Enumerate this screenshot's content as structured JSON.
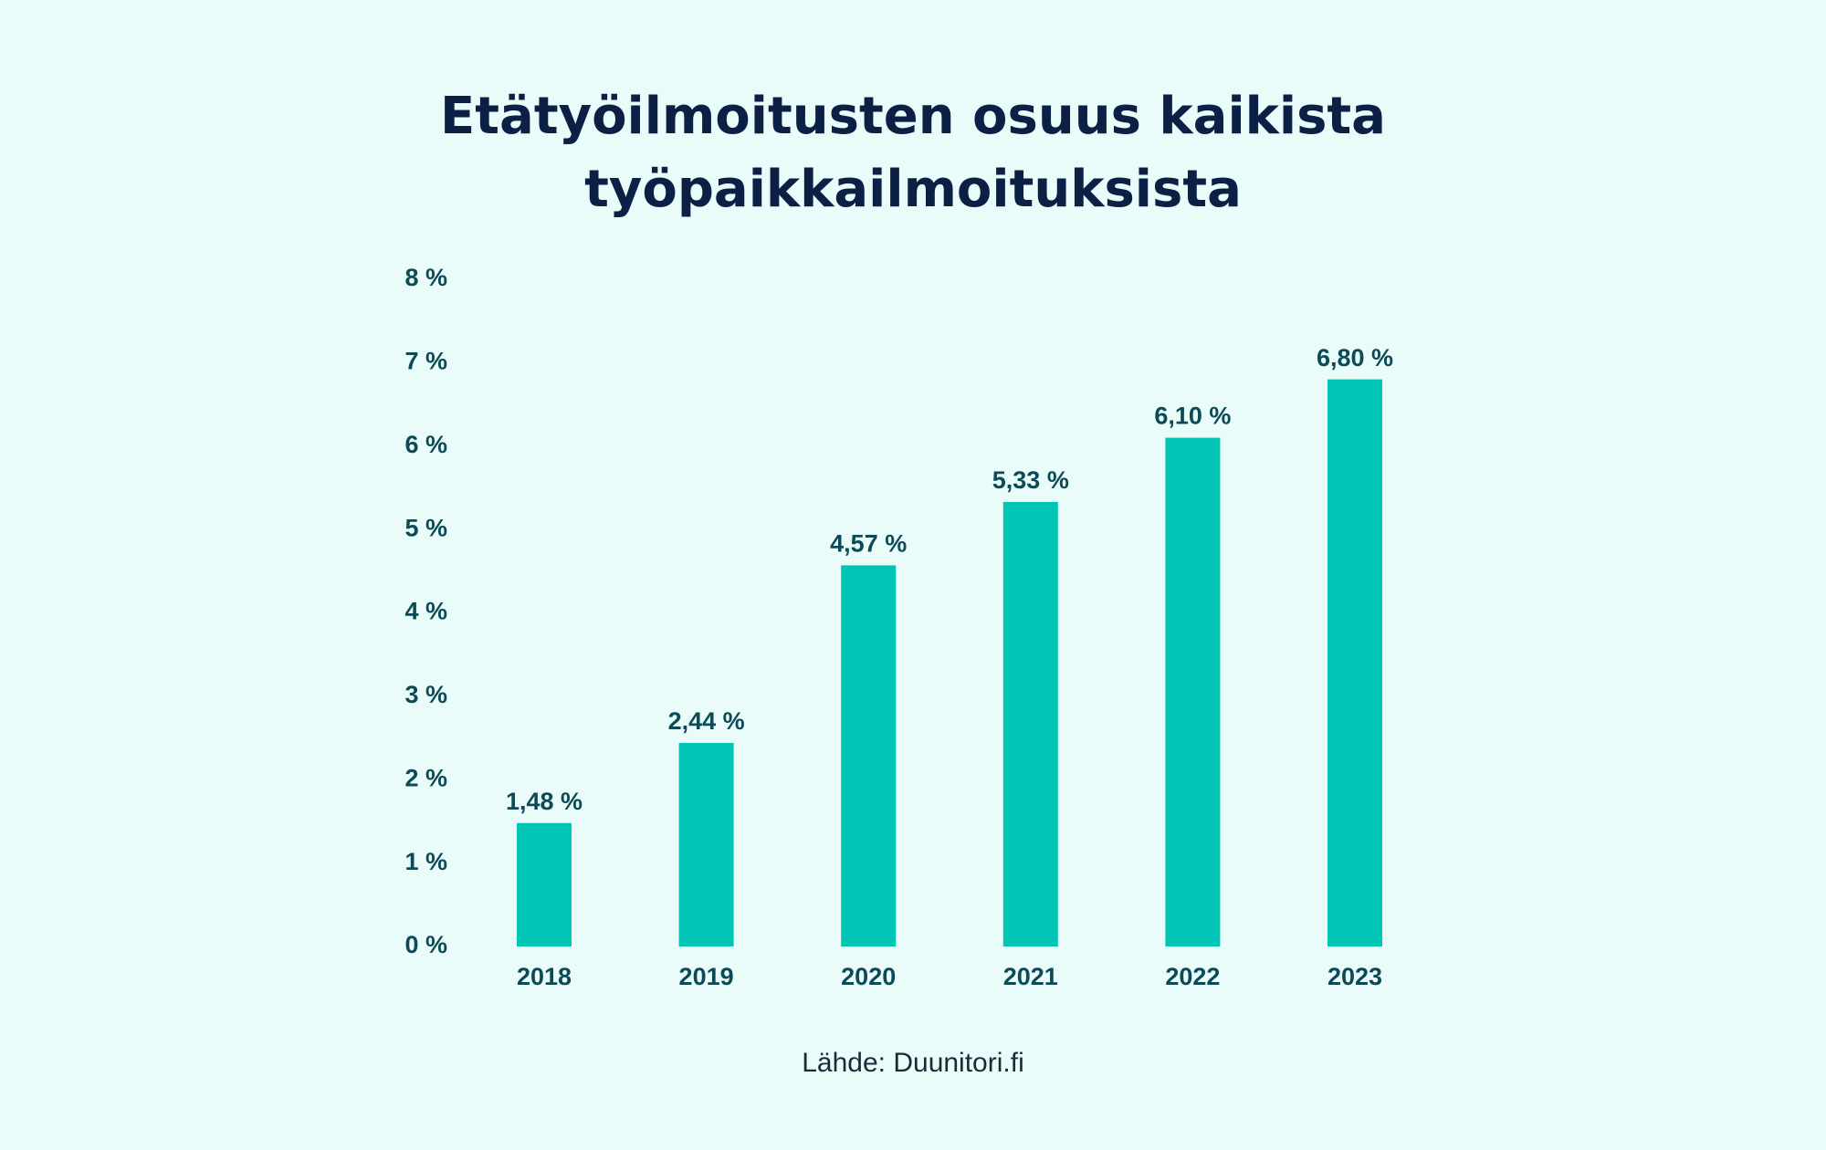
{
  "title": {
    "line1": "Etätyöilmoitusten osuus kaikista",
    "line2": "työpaikkailmoituksista"
  },
  "source": "Lähde: Duunitori.fi",
  "colors": {
    "background": "#eafcf9",
    "bar": "#00c4b4",
    "label": "#0d4a58",
    "title": "#0c1f44"
  },
  "chart_data": {
    "type": "bar",
    "title": "Etätyöilmoitusten osuus kaikista työpaikkailmoituksista",
    "categories": [
      "2018",
      "2019",
      "2020",
      "2021",
      "2022",
      "2023"
    ],
    "values": [
      1.48,
      2.44,
      4.57,
      5.33,
      6.1,
      6.8
    ],
    "data_labels": [
      "1,48 %",
      "2,44 %",
      "4,57 %",
      "5,33 %",
      "6,10 %",
      "6,80 %"
    ],
    "ylim": [
      0,
      8
    ],
    "yticks": [
      0,
      1,
      2,
      3,
      4,
      5,
      6,
      7,
      8
    ],
    "ytick_labels": [
      "0 %",
      "1 %",
      "2 %",
      "3 %",
      "4 %",
      "5 %",
      "6 %",
      "7 %",
      "8 %"
    ],
    "grid": false,
    "legend": "none"
  }
}
